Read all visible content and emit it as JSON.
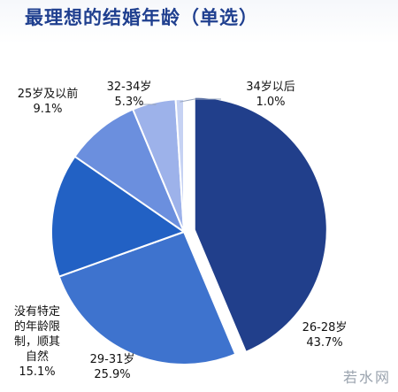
{
  "chart_data": {
    "type": "pie",
    "title": "最理想的结婚年龄（单选）",
    "exploded": "26-28岁",
    "slices": [
      {
        "label_lines": [
          "26-28岁",
          "43.7%"
        ],
        "value": 43.7,
        "color": "#213f8b"
      },
      {
        "label_lines": [
          "29-31岁",
          "25.9%"
        ],
        "value": 25.9,
        "color": "#3e73ce"
      },
      {
        "label_lines": [
          "没有特定",
          "的年龄限",
          "制，顺其",
          "自然",
          "15.1%"
        ],
        "value": 15.1,
        "color": "#2261c4"
      },
      {
        "label_lines": [
          "25岁及以前",
          "9.1%"
        ],
        "value": 9.1,
        "color": "#6b8fde"
      },
      {
        "label_lines": [
          "32-34岁",
          "5.3%"
        ],
        "value": 5.3,
        "color": "#9db2ea"
      },
      {
        "label_lines": [
          "34岁以后",
          "1.0%"
        ],
        "value": 1.0,
        "color": "#c6d2f3"
      }
    ]
  },
  "watermark": "若水网"
}
